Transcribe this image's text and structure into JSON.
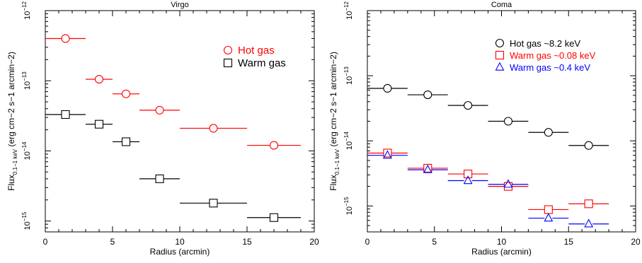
{
  "chart_data": [
    {
      "type": "scatter",
      "title": "Virgo",
      "xlabel": "Radius (arcmin)",
      "ylabel_main": "Flux",
      "ylabel_sub": "0.1−1 keV",
      "ylabel_units": "(erg cm−2 s−1 arcmin−2)",
      "xlim": [
        0,
        20
      ],
      "ylim": [
        7e-16,
        1e-12
      ],
      "yscale": "log",
      "x_ticks": [
        0,
        5,
        10,
        15,
        20
      ],
      "y_tick_exponents": [
        -15,
        -14,
        -13,
        -12
      ],
      "legend_position": "top-right",
      "series": [
        {
          "name": "Hot gas",
          "color": "#ff0000",
          "marker": "circle",
          "points": [
            {
              "x": 1.5,
              "xerr": 1.5,
              "y": 4e-13
            },
            {
              "x": 4.0,
              "xerr": 1.0,
              "y": 1.05e-13
            },
            {
              "x": 6.0,
              "xerr": 1.0,
              "y": 6.5e-14
            },
            {
              "x": 8.5,
              "xerr": 1.5,
              "y": 3.8e-14
            },
            {
              "x": 12.5,
              "xerr": 2.5,
              "y": 2.1e-14
            },
            {
              "x": 17.0,
              "xerr": 2.0,
              "y": 1.2e-14
            }
          ]
        },
        {
          "name": "Warm gas",
          "color": "#000000",
          "marker": "square",
          "points": [
            {
              "x": 1.5,
              "xerr": 1.5,
              "y": 3.3e-14
            },
            {
              "x": 4.0,
              "xerr": 1.0,
              "y": 2.4e-14
            },
            {
              "x": 6.0,
              "xerr": 1.0,
              "y": 1.35e-14
            },
            {
              "x": 8.5,
              "xerr": 1.5,
              "y": 4e-15
            },
            {
              "x": 12.5,
              "xerr": 2.5,
              "y": 1.8e-15
            },
            {
              "x": 17.0,
              "xerr": 2.0,
              "y": 1.12e-15
            }
          ]
        }
      ]
    },
    {
      "type": "scatter",
      "title": "Coma",
      "xlabel": "Radius (arcmin)",
      "ylabel_main": "Flux",
      "ylabel_sub": "0.1−1 keV",
      "ylabel_units": "(erg cm−2 s−1 arcmin−2)",
      "xlim": [
        0,
        20
      ],
      "ylim": [
        4e-16,
        1e-12
      ],
      "yscale": "log",
      "x_ticks": [
        0,
        5,
        10,
        15,
        20
      ],
      "y_tick_exponents": [
        -15,
        -14,
        -13,
        -12
      ],
      "legend_position": "top-right",
      "series": [
        {
          "name": "Hot gas ~8.2 keV",
          "color": "#000000",
          "marker": "circle",
          "points": [
            {
              "x": 1.5,
              "xerr": 1.5,
              "y": 6.4e-14
            },
            {
              "x": 4.5,
              "xerr": 1.5,
              "y": 5.1e-14
            },
            {
              "x": 7.5,
              "xerr": 1.5,
              "y": 3.5e-14
            },
            {
              "x": 10.5,
              "xerr": 1.5,
              "y": 2e-14
            },
            {
              "x": 13.5,
              "xerr": 1.5,
              "y": 1.35e-14
            },
            {
              "x": 16.5,
              "xerr": 1.5,
              "y": 8.5e-15
            }
          ]
        },
        {
          "name": "Warm gas ~0.08 keV",
          "color": "#ff0000",
          "marker": "square",
          "points": [
            {
              "x": 1.5,
              "xerr": 1.5,
              "y": 6.5e-15
            },
            {
              "x": 4.5,
              "xerr": 1.5,
              "y": 3.8e-15
            },
            {
              "x": 7.5,
              "xerr": 1.5,
              "y": 3.1e-15
            },
            {
              "x": 10.5,
              "xerr": 1.5,
              "y": 2e-15
            },
            {
              "x": 13.5,
              "xerr": 1.5,
              "y": 8.8e-16
            },
            {
              "x": 16.5,
              "xerr": 1.5,
              "y": 1.08e-15
            }
          ]
        },
        {
          "name": "Warm gas ~0.4 keV",
          "color": "#0000ff",
          "marker": "triangle",
          "points": [
            {
              "x": 1.5,
              "xerr": 1.5,
              "y": 6e-15
            },
            {
              "x": 4.5,
              "xerr": 1.5,
              "y": 3.6e-15
            },
            {
              "x": 7.5,
              "xerr": 1.5,
              "y": 2.45e-15
            },
            {
              "x": 10.5,
              "xerr": 1.5,
              "y": 2.15e-15
            },
            {
              "x": 13.5,
              "xerr": 1.5,
              "y": 6.5e-16
            },
            {
              "x": 16.5,
              "xerr": 1.5,
              "y": 5.3e-16
            }
          ]
        }
      ]
    }
  ]
}
